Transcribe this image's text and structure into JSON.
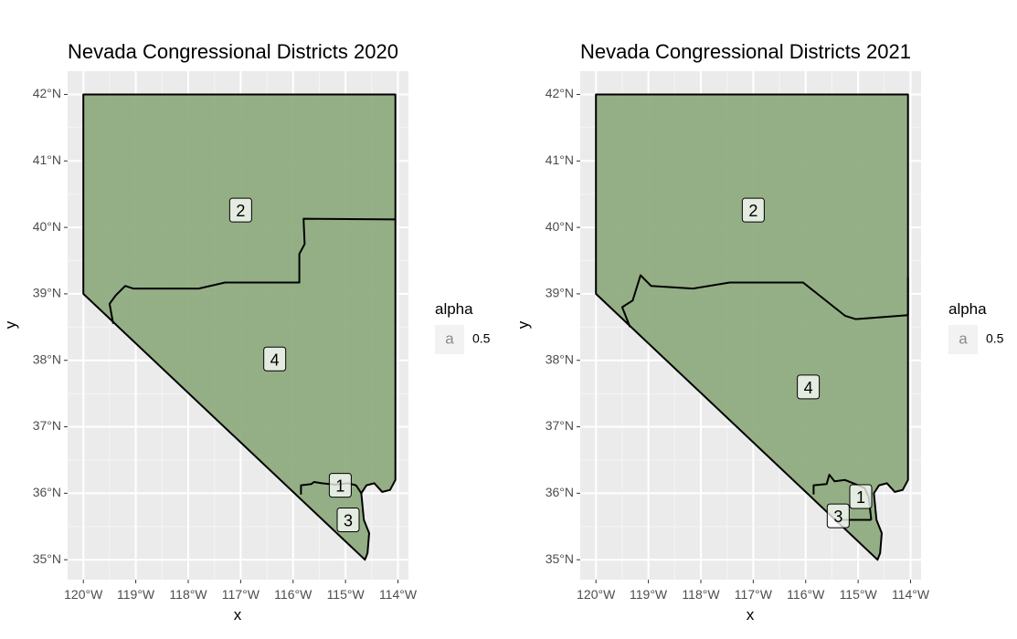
{
  "chart_data": [
    {
      "type": "map",
      "title": "Nevada Congressional Districts 2020",
      "xlabel": "x",
      "ylabel": "y",
      "xlim": [
        -120.3,
        -113.8
      ],
      "ylim": [
        34.7,
        42.35
      ],
      "x_ticks": [
        -120,
        -119,
        -118,
        -117,
        -116,
        -115,
        -114
      ],
      "x_tick_labels": [
        "120°W",
        "119°W",
        "118°W",
        "117°W",
        "116°W",
        "115°W",
        "114°W"
      ],
      "y_ticks": [
        35,
        36,
        37,
        38,
        39,
        40,
        41,
        42
      ],
      "y_tick_labels": [
        "35°N",
        "36°N",
        "37°N",
        "38°N",
        "39°N",
        "40°N",
        "41°N",
        "42°N"
      ],
      "grid": true,
      "fill_color": "#8fac80",
      "outline_color": "#000000",
      "state_outline": [
        [
          -120.0,
          42.0
        ],
        [
          -114.05,
          42.0
        ],
        [
          -114.05,
          36.2
        ],
        [
          -114.15,
          36.05
        ],
        [
          -114.3,
          36.02
        ],
        [
          -114.45,
          36.15
        ],
        [
          -114.6,
          36.12
        ],
        [
          -114.7,
          36.0
        ],
        [
          -114.65,
          35.6
        ],
        [
          -114.55,
          35.4
        ],
        [
          -114.58,
          35.1
        ],
        [
          -114.63,
          35.0
        ],
        [
          -120.0,
          39.0
        ],
        [
          -120.0,
          42.0
        ]
      ],
      "district_lines": [
        [
          [
            -119.43,
            38.55
          ],
          [
            -119.5,
            38.85
          ],
          [
            -119.38,
            38.98
          ],
          [
            -119.2,
            39.12
          ],
          [
            -119.05,
            39.08
          ],
          [
            -117.8,
            39.08
          ],
          [
            -117.3,
            39.17
          ],
          [
            -115.88,
            39.17
          ],
          [
            -115.88,
            39.6
          ],
          [
            -115.78,
            39.75
          ],
          [
            -115.8,
            40.13
          ],
          [
            -114.05,
            40.12
          ]
        ],
        [
          [
            -115.85,
            35.98
          ],
          [
            -115.85,
            36.12
          ],
          [
            -115.65,
            36.14
          ],
          [
            -115.6,
            36.17
          ],
          [
            -115.45,
            36.15
          ],
          [
            -115.2,
            36.13
          ],
          [
            -114.95,
            36.15
          ],
          [
            -114.8,
            36.12
          ],
          [
            -114.7,
            36.0
          ]
        ]
      ],
      "districts": [
        {
          "label": "1",
          "lon": -115.1,
          "lat": 36.12
        },
        {
          "label": "2",
          "lon": -117.0,
          "lat": 40.26
        },
        {
          "label": "3",
          "lon": -114.95,
          "lat": 35.6
        },
        {
          "label": "4",
          "lon": -116.35,
          "lat": 38.02
        }
      ],
      "legend": {
        "title": "alpha",
        "key_symbol": "a",
        "label": "0.5",
        "position": "right"
      }
    },
    {
      "type": "map",
      "title": "Nevada Congressional Districts 2021",
      "xlabel": "x",
      "ylabel": "y",
      "xlim": [
        -120.3,
        -113.8
      ],
      "ylim": [
        34.7,
        42.35
      ],
      "x_ticks": [
        -120,
        -119,
        -118,
        -117,
        -116,
        -115,
        -114
      ],
      "x_tick_labels": [
        "120°W",
        "119°W",
        "118°W",
        "117°W",
        "116°W",
        "115°W",
        "114°W"
      ],
      "y_ticks": [
        35,
        36,
        37,
        38,
        39,
        40,
        41,
        42
      ],
      "y_tick_labels": [
        "35°N",
        "36°N",
        "37°N",
        "38°N",
        "39°N",
        "40°N",
        "41°N",
        "42°N"
      ],
      "grid": true,
      "fill_color": "#8fac80",
      "outline_color": "#000000",
      "state_outline": [
        [
          -120.0,
          42.0
        ],
        [
          -114.05,
          42.0
        ],
        [
          -114.05,
          36.2
        ],
        [
          -114.15,
          36.05
        ],
        [
          -114.3,
          36.02
        ],
        [
          -114.45,
          36.15
        ],
        [
          -114.6,
          36.12
        ],
        [
          -114.7,
          36.0
        ],
        [
          -114.65,
          35.6
        ],
        [
          -114.55,
          35.4
        ],
        [
          -114.58,
          35.1
        ],
        [
          -114.63,
          35.0
        ],
        [
          -120.0,
          39.0
        ],
        [
          -120.0,
          42.0
        ]
      ],
      "district_lines": [
        [
          [
            -119.35,
            38.5
          ],
          [
            -119.5,
            38.8
          ],
          [
            -119.3,
            38.9
          ],
          [
            -119.15,
            39.28
          ],
          [
            -118.95,
            39.12
          ],
          [
            -118.15,
            39.08
          ],
          [
            -117.45,
            39.17
          ],
          [
            -116.05,
            39.17
          ],
          [
            -115.25,
            38.67
          ],
          [
            -115.05,
            38.62
          ],
          [
            -114.05,
            38.68
          ]
        ],
        [
          [
            -114.05,
            38.68
          ],
          [
            -114.05,
            39.25
          ]
        ],
        [
          [
            -115.85,
            35.98
          ],
          [
            -115.85,
            36.12
          ],
          [
            -115.6,
            36.14
          ],
          [
            -115.55,
            36.28
          ],
          [
            -115.45,
            36.18
          ],
          [
            -115.25,
            36.2
          ],
          [
            -115.0,
            36.12
          ],
          [
            -114.88,
            36.08
          ],
          [
            -114.8,
            35.95
          ],
          [
            -114.75,
            35.6
          ]
        ],
        [
          [
            -115.3,
            35.6
          ],
          [
            -114.75,
            35.6
          ]
        ]
      ],
      "districts": [
        {
          "label": "1",
          "lon": -114.95,
          "lat": 35.95
        },
        {
          "label": "2",
          "lon": -117.0,
          "lat": 40.26
        },
        {
          "label": "3",
          "lon": -115.38,
          "lat": 35.66
        },
        {
          "label": "4",
          "lon": -115.95,
          "lat": 37.6
        }
      ],
      "legend": {
        "title": "alpha",
        "key_symbol": "a",
        "label": "0.5",
        "position": "right"
      }
    }
  ]
}
